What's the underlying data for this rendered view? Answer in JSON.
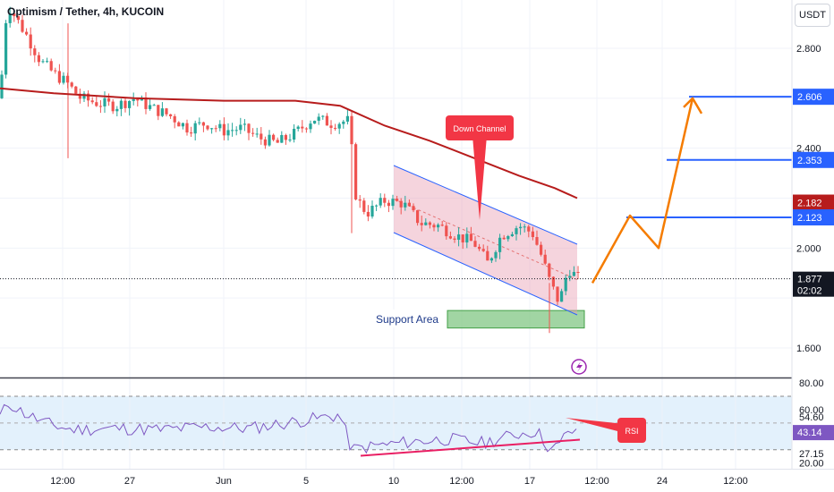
{
  "header": {
    "title": "Optimism / Tether, 4h, KUCOIN",
    "currency": "USDT"
  },
  "chart_data": {
    "type": "candlestick",
    "title": "Optimism / Tether, 4h, KUCOIN",
    "price_axis": {
      "range": [
        1.5,
        3.0
      ],
      "ticks": [
        "2.800",
        "2.600",
        "2.400",
        "2.000",
        "1.600"
      ],
      "tick_values": [
        2.8,
        2.6,
        2.4,
        2.0,
        1.6
      ]
    },
    "time_axis": {
      "labels": [
        "12:00",
        "27",
        "Jun",
        "5",
        "10",
        "12:00",
        "17",
        "12:00",
        "24",
        "12:00"
      ]
    },
    "price_labels": {
      "level_2606": {
        "text": "2.606",
        "value": 2.606,
        "color": "#2962ff"
      },
      "level_2353": {
        "text": "2.353",
        "value": 2.353,
        "color": "#2962ff"
      },
      "ma_value": {
        "text": "2.182",
        "value": 2.182,
        "color": "#c2185b"
      },
      "level_2123": {
        "text": "2.123",
        "value": 2.123,
        "color": "#2962ff"
      },
      "last_price": {
        "text": "1.877",
        "value": 1.877,
        "color": "#131722"
      },
      "countdown": {
        "text": "02:02"
      }
    },
    "annotations": {
      "down_channel": "Down Channel",
      "support_area": "Support Area",
      "rsi": "RSI"
    },
    "support_zone": [
      1.68,
      1.75
    ],
    "projection_path": [
      1.86,
      2.13,
      2.0,
      2.6
    ],
    "colors": {
      "up": "#26a69a",
      "down": "#ef5350",
      "ma": "#b71c1c",
      "channel": "#2962ff",
      "projection": "#f57c00",
      "level": "#2962ff",
      "support": "#81c784",
      "rsi_line": "#7e57c2",
      "rsi_trend": "#e91e63"
    },
    "rsi": {
      "range": [
        20,
        80
      ],
      "ticks": [
        "80.00",
        "60.00",
        "54.60",
        "43.14",
        "27.15",
        "20.00"
      ],
      "tick_values": [
        80,
        60,
        54.6,
        43.14,
        27.15,
        20
      ],
      "bands": [
        70,
        30
      ],
      "current": "43.14"
    }
  }
}
